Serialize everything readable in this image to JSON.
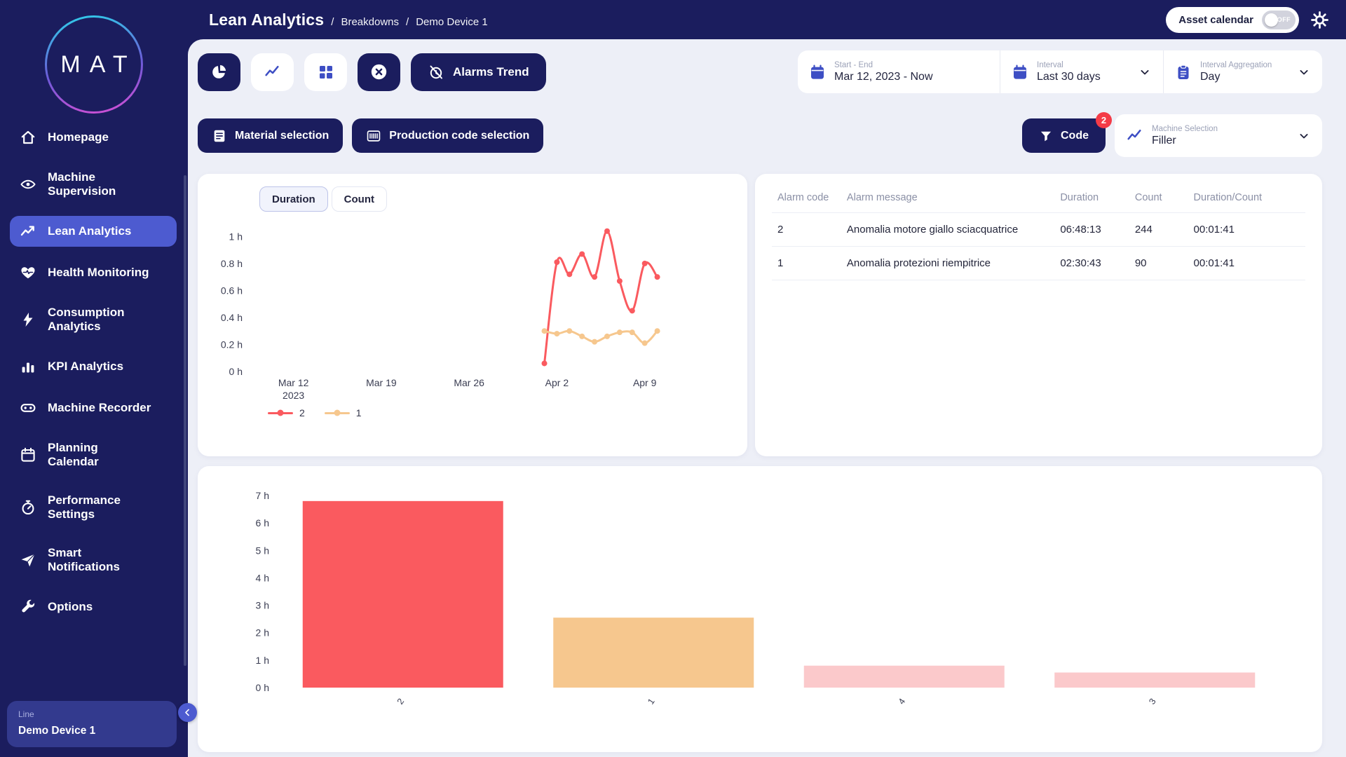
{
  "header": {
    "breadcrumb": {
      "title": "Lean Analytics",
      "crumbs": [
        "Breakdowns",
        "Demo Device 1"
      ]
    },
    "asset_calendar": {
      "label": "Asset calendar",
      "state": "OFF"
    }
  },
  "sidebar": {
    "logo_text": "MAT",
    "items": [
      {
        "label": "Homepage",
        "icon": "home",
        "active": false
      },
      {
        "label": "Machine\nSupervision",
        "icon": "eye",
        "active": false
      },
      {
        "label": "Lean Analytics",
        "icon": "trend",
        "active": true
      },
      {
        "label": "Health Monitoring",
        "icon": "heart",
        "active": false
      },
      {
        "label": "Consumption\nAnalytics",
        "icon": "bolt",
        "active": false
      },
      {
        "label": "KPI Analytics",
        "icon": "kpi",
        "active": false
      },
      {
        "label": "Machine Recorder",
        "icon": "recorder",
        "active": false
      },
      {
        "label": "Planning\nCalendar",
        "icon": "calendar",
        "active": false
      },
      {
        "label": "Performance\nSettings",
        "icon": "gauge",
        "active": false
      },
      {
        "label": "Smart\nNotifications",
        "icon": "send",
        "active": false
      },
      {
        "label": "Options",
        "icon": "wrench",
        "active": false
      }
    ],
    "device_card": {
      "line_label": "Line",
      "device_name": "Demo Device 1"
    }
  },
  "toolbar": {
    "alarms_trend_label": "Alarms Trend",
    "filters": {
      "start_end": {
        "label": "Start - End",
        "value": "Mar 12, 2023 - Now"
      },
      "interval": {
        "label": "Interval",
        "value": "Last 30 days"
      },
      "aggregation": {
        "label": "Interval Aggregation",
        "value": "Day"
      }
    },
    "material_selection_label": "Material selection",
    "production_code_label": "Production code selection",
    "code_filter": {
      "label": "Code",
      "badge": "2"
    },
    "machine_selection": {
      "label": "Machine Selection",
      "value": "Filler"
    }
  },
  "trend_panel": {
    "tabs": [
      {
        "label": "Duration",
        "active": true
      },
      {
        "label": "Count",
        "active": false
      }
    ]
  },
  "alarm_table": {
    "columns": [
      "Alarm code",
      "Alarm message",
      "Duration",
      "Count",
      "Duration/Count"
    ],
    "rows": [
      {
        "code": "2",
        "message": "Anomalia motore giallo sciacquatrice",
        "duration": "06:48:13",
        "count": "244",
        "duration_count": "00:01:41"
      },
      {
        "code": "1",
        "message": "Anomalia protezioni riempitrice",
        "duration": "02:30:43",
        "count": "90",
        "duration_count": "00:01:41"
      }
    ]
  },
  "colors": {
    "navy": "#1b1d5e",
    "accent_blue": "#3d4ec4",
    "active_nav": "#4d5bd0",
    "series_red": "#fa5a5f",
    "series_orange": "#f6c78e",
    "series_pink": "#fbc9cb",
    "badge_red": "#f43b47",
    "background": "#edeff7"
  },
  "chart_data": [
    {
      "type": "line",
      "x_range": [
        -3.5,
        34.5
      ],
      "x_ticks": [
        {
          "pos": 0,
          "label": "Mar 12",
          "sub": "2023"
        },
        {
          "pos": 7,
          "label": "Mar 19"
        },
        {
          "pos": 14,
          "label": "Mar 26"
        },
        {
          "pos": 21,
          "label": "Apr 2"
        },
        {
          "pos": 28,
          "label": "Apr 9"
        }
      ],
      "ylim": [
        0,
        1.08
      ],
      "y_ticks": [
        {
          "value": 0,
          "label": "0 h"
        },
        {
          "value": 0.2,
          "label": "0.2 h"
        },
        {
          "value": 0.4,
          "label": "0.4 h"
        },
        {
          "value": 0.6,
          "label": "0.6 h"
        },
        {
          "value": 0.8,
          "label": "0.8 h"
        },
        {
          "value": 1,
          "label": "1 h"
        }
      ],
      "grid": false,
      "legend_position": "bottom-left",
      "series": [
        {
          "name": "2",
          "color": "#fa5a5f",
          "x": [
            20,
            21,
            22,
            23,
            24,
            25,
            26,
            27,
            28,
            29
          ],
          "y": [
            0.06,
            0.81,
            0.72,
            0.87,
            0.7,
            1.04,
            0.67,
            0.45,
            0.8,
            0.7
          ]
        },
        {
          "name": "1",
          "color": "#f6c78e",
          "x": [
            20,
            21,
            22,
            23,
            24,
            25,
            26,
            27,
            28,
            29
          ],
          "y": [
            0.3,
            0.28,
            0.3,
            0.26,
            0.22,
            0.26,
            0.29,
            0.29,
            0.21,
            0.3
          ]
        }
      ]
    },
    {
      "type": "bar",
      "categories": [
        "2",
        "1",
        "4",
        "3"
      ],
      "values": [
        6.8,
        2.55,
        0.8,
        0.55
      ],
      "colors": [
        "#fa5a5f",
        "#f6c78e",
        "#fbc9cb",
        "#fbc9cb"
      ],
      "ylim": [
        0,
        7
      ],
      "y_ticks": [
        {
          "value": 0,
          "label": "0 h"
        },
        {
          "value": 1,
          "label": "1 h"
        },
        {
          "value": 2,
          "label": "2 h"
        },
        {
          "value": 3,
          "label": "3 h"
        },
        {
          "value": 4,
          "label": "4 h"
        },
        {
          "value": 5,
          "label": "5 h"
        },
        {
          "value": 6,
          "label": "6 h"
        },
        {
          "value": 7,
          "label": "7 h"
        }
      ],
      "grid": false
    }
  ]
}
